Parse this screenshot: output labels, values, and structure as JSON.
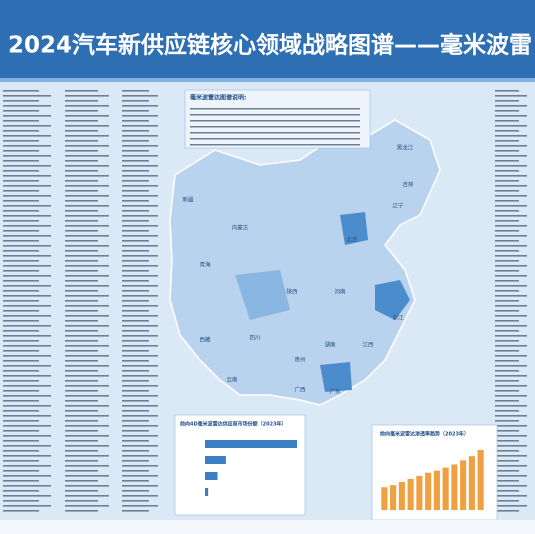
{
  "header": {
    "title": "2024汽车新供应链核心领域战略图谱——毫米波雷"
  },
  "notes": {
    "title": "毫米波雷达图谱说明:"
  },
  "map": {
    "provinces": [
      "新疆",
      "内蒙古",
      "黑龙江",
      "吉林",
      "辽宁",
      "北京",
      "青海",
      "陕西",
      "河南",
      "西藏",
      "四川",
      "湖南",
      "江西",
      "云南",
      "贵州",
      "广西",
      "广东",
      "浙江"
    ]
  },
  "charts": [
    {
      "type": "hbar",
      "title": "前向4D毫米波雷达供应商市场份额（2023年）",
      "categories": [
        null,
        null,
        null,
        null
      ],
      "values": [
        88,
        20,
        12,
        3
      ],
      "color": "#3b7fc4"
    },
    {
      "type": "bar",
      "title": "前向毫米波雷达渗透率趋势（2023年）",
      "values": [
        22,
        24,
        27,
        30,
        33,
        36,
        38,
        41,
        44,
        48,
        52,
        58
      ],
      "color": "#f0a040"
    }
  ]
}
